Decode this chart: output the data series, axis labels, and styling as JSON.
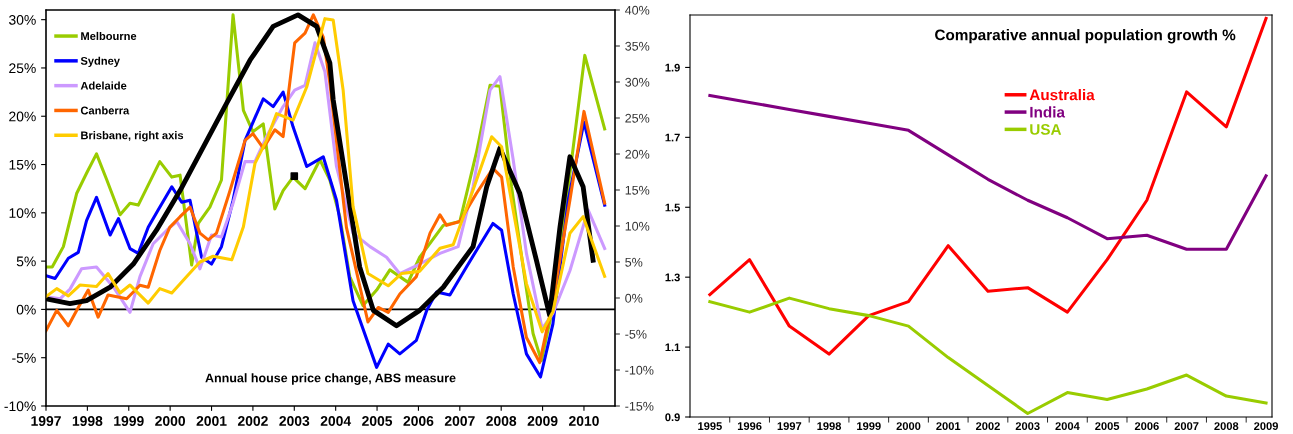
{
  "chart_data": [
    {
      "type": "line",
      "xlim": [
        1997,
        2010.75
      ],
      "xticks": [
        1997,
        1998,
        1999,
        2000,
        2001,
        2002,
        2003,
        2004,
        2005,
        2006,
        2007,
        2008,
        2009,
        2010
      ],
      "ylim": [
        -10,
        31
      ],
      "yticks": [
        {
          "value": -10,
          "label": "-10%"
        },
        {
          "value": -5,
          "label": "-5%"
        },
        {
          "value": 0,
          "label": "0%"
        },
        {
          "value": 5,
          "label": "5%"
        },
        {
          "value": 10,
          "label": "10%"
        },
        {
          "value": 15,
          "label": "15%"
        },
        {
          "value": 20,
          "label": "20%"
        },
        {
          "value": 25,
          "label": "25%"
        },
        {
          "value": 30,
          "label": "30%"
        }
      ],
      "y2lim": [
        -15,
        40
      ],
      "y2ticks": [
        {
          "value": -15,
          "label": "-15%"
        },
        {
          "value": -10,
          "label": "-10%"
        },
        {
          "value": -5,
          "label": "-5%"
        },
        {
          "value": 0,
          "label": "0%"
        },
        {
          "value": 5,
          "label": "5%"
        },
        {
          "value": 10,
          "label": "10%"
        },
        {
          "value": 15,
          "label": "15%"
        },
        {
          "value": 20,
          "label": "20%"
        },
        {
          "value": 25,
          "label": "25%"
        },
        {
          "value": 30,
          "label": "30%"
        },
        {
          "value": 35,
          "label": "35%"
        },
        {
          "value": 40,
          "label": "40%"
        }
      ],
      "grid": false,
      "legend": "top left",
      "marker": "none",
      "line_style": "solid",
      "ref_lines": [
        {
          "axis": "y",
          "value": 0,
          "color": "#000000"
        }
      ],
      "annotations": [
        "Annual house price change, ABS measure"
      ],
      "series": [
        {
          "name": "Melbourne",
          "color": "#99cc00",
          "x": [
            1997.0,
            1997.15,
            1997.42,
            1997.74,
            1997.98,
            1998.22,
            1998.47,
            1998.79,
            1999.03,
            1999.23,
            1999.75,
            2000.04,
            2000.24,
            2000.52,
            2000.68,
            2000.96,
            2001.24,
            2001.52,
            2001.77,
            2002.0,
            2002.25,
            2002.53,
            2002.73,
            2002.97,
            2003.26,
            2003.62,
            2003.86,
            2004.1,
            2004.34,
            2004.66,
            2004.99,
            2005.31,
            2005.75,
            2006.03,
            2006.6,
            2007.0,
            2007.4,
            2007.73,
            2007.97,
            2008.25,
            2008.53,
            2008.77,
            2008.97,
            2009.25,
            2009.58,
            2010.02,
            2010.5
          ],
          "values": [
            4.4,
            4.4,
            6.5,
            12.0,
            14.1,
            16.1,
            13.4,
            9.8,
            11.0,
            10.8,
            15.3,
            13.7,
            13.9,
            4.6,
            8.9,
            10.6,
            13.4,
            30.5,
            20.6,
            18.4,
            19.2,
            10.4,
            12.3,
            13.7,
            12.5,
            15.5,
            13.4,
            9.6,
            3.4,
            0.4,
            2.0,
            4.1,
            2.8,
            5.4,
            8.7,
            9.1,
            16.2,
            23.2,
            23.1,
            12.7,
            4.4,
            -2.5,
            -5.3,
            0.2,
            11.3,
            26.3,
            18.7
          ]
        },
        {
          "name": "Sydney",
          "color": "#0000ff",
          "x": [
            1997.0,
            1997.22,
            1997.54,
            1997.78,
            1997.98,
            1998.22,
            1998.55,
            1998.75,
            1999.03,
            1999.23,
            1999.47,
            1999.71,
            2000.04,
            2000.28,
            2000.48,
            2000.76,
            2001.0,
            2001.24,
            2001.52,
            2001.81,
            2002.25,
            2002.49,
            2002.73,
            2002.97,
            2003.3,
            2003.7,
            2004.02,
            2004.42,
            2004.99,
            2005.27,
            2005.55,
            2005.95,
            2006.2,
            2006.44,
            2006.76,
            2007.16,
            2007.8,
            2008.01,
            2008.29,
            2008.61,
            2008.95,
            2009.25,
            2009.62,
            2010.0,
            2010.5
          ],
          "values": [
            3.5,
            3.2,
            5.3,
            5.9,
            9.2,
            11.6,
            7.7,
            9.4,
            6.3,
            5.8,
            8.5,
            10.3,
            12.7,
            11.1,
            11.3,
            5.4,
            4.7,
            6.5,
            11.3,
            17.5,
            21.8,
            21.0,
            22.5,
            18.9,
            14.8,
            15.8,
            11.3,
            0.9,
            -6.0,
            -3.6,
            -4.6,
            -3.2,
            -0.1,
            1.8,
            1.5,
            4.4,
            8.9,
            8.2,
            1.6,
            -4.6,
            -7.0,
            -1.5,
            11.3,
            19.4,
            10.8
          ]
        },
        {
          "name": "Adelaide",
          "color": "#cc99ff",
          "x": [
            1997.0,
            1997.34,
            1997.58,
            1997.86,
            1998.22,
            1998.63,
            1999.03,
            1999.27,
            1999.59,
            1999.92,
            2000.16,
            2000.48,
            2000.72,
            2001.0,
            2001.24,
            2001.52,
            2001.81,
            2002.05,
            2002.33,
            2002.73,
            2003.01,
            2003.26,
            2003.5,
            2003.74,
            2004.02,
            2004.42,
            2004.83,
            2005.23,
            2005.55,
            2006.03,
            2006.52,
            2006.96,
            2007.32,
            2007.73,
            2007.97,
            2008.29,
            2008.61,
            2008.99,
            2009.25,
            2009.66,
            2010.1,
            2010.5
          ],
          "values": [
            1.3,
            1.1,
            2.1,
            4.2,
            4.4,
            2.3,
            -0.3,
            3.4,
            6.8,
            8.2,
            9.1,
            6.8,
            4.2,
            7.7,
            7.5,
            11.0,
            15.3,
            15.3,
            17.9,
            21.0,
            22.7,
            23.2,
            27.6,
            24.6,
            14.8,
            7.9,
            6.5,
            5.4,
            3.7,
            4.7,
            5.8,
            6.5,
            12.7,
            22.7,
            24.1,
            15.5,
            5.8,
            -2.0,
            -0.4,
            4.0,
            10.3,
            6.3
          ]
        },
        {
          "name": "Canberra",
          "color": "#ff6600",
          "x": [
            1997.0,
            1997.26,
            1997.54,
            1997.78,
            1998.02,
            1998.26,
            1998.5,
            1998.95,
            1999.27,
            1999.47,
            1999.75,
            1999.99,
            2000.24,
            2000.48,
            2000.72,
            2000.92,
            2001.12,
            2001.44,
            2001.81,
            2002.0,
            2002.25,
            2002.53,
            2002.73,
            2003.01,
            2003.26,
            2003.46,
            2003.7,
            2003.86,
            2004.26,
            2004.78,
            2005.03,
            2005.27,
            2005.55,
            2005.95,
            2006.28,
            2006.52,
            2006.68,
            2007.0,
            2007.4,
            2007.8,
            2008.01,
            2008.29,
            2008.61,
            2008.93,
            2009.25,
            2009.66,
            2010.0,
            2010.5
          ],
          "values": [
            -2.2,
            -0.1,
            -1.7,
            0.2,
            2.0,
            -0.8,
            1.5,
            1.1,
            2.5,
            2.3,
            6.1,
            8.5,
            9.6,
            10.6,
            7.9,
            7.2,
            7.9,
            12.2,
            17.5,
            18.2,
            16.7,
            18.6,
            17.9,
            27.6,
            28.6,
            30.5,
            28.2,
            23.4,
            8.5,
            -1.3,
            0.2,
            -0.3,
            1.6,
            3.4,
            7.9,
            9.8,
            8.7,
            9.1,
            12.0,
            14.6,
            13.7,
            4.4,
            -2.9,
            -5.5,
            0.9,
            11.3,
            20.5,
            11.0
          ]
        },
        {
          "name": "Brisbane, right axis",
          "color": "#ffcc00",
          "axis": "y2",
          "x": [
            1997.0,
            1997.26,
            1997.54,
            1997.82,
            1998.22,
            1998.5,
            1998.79,
            1999.03,
            1999.47,
            1999.75,
            2000.04,
            2000.4,
            2000.72,
            2001.04,
            2001.49,
            2001.77,
            2002.05,
            2002.33,
            2002.57,
            2002.97,
            2003.3,
            2003.74,
            2003.94,
            2004.18,
            2004.42,
            2004.78,
            2005.27,
            2005.59,
            2006.03,
            2006.52,
            2006.84,
            2007.32,
            2007.77,
            2008.01,
            2008.29,
            2008.61,
            2008.99,
            2009.25,
            2009.66,
            2009.98,
            2010.5
          ],
          "values": [
            0.2,
            1.3,
            0.3,
            1.8,
            1.6,
            3.4,
            0.7,
            1.8,
            -0.7,
            1.3,
            0.7,
            3.0,
            5.0,
            5.8,
            5.3,
            9.9,
            18.7,
            21.9,
            25.6,
            24.7,
            29.3,
            38.8,
            38.6,
            28.9,
            12.7,
            3.4,
            1.7,
            3.4,
            3.7,
            6.9,
            7.4,
            15.0,
            22.4,
            21.0,
            12.2,
            2.0,
            -4.7,
            -1.9,
            9.0,
            11.3,
            3.0
          ]
        },
        {
          "color": "#000000",
          "x": [
            1997.0,
            1997.58,
            1997.98,
            1998.55,
            1999.11,
            1999.67,
            2000.24,
            2000.8,
            2001.36,
            2001.93,
            2002.49,
            2003.09,
            2003.54,
            2003.86,
            2003.94,
            2004.26,
            2004.58,
            2004.91,
            2005.47,
            2006.03,
            2006.6,
            2007.32,
            2007.65,
            2007.97,
            2008.45,
            2008.85,
            2009.17,
            2009.42,
            2009.66,
            2009.98,
            2010.22
          ],
          "values": [
            1.1,
            0.6,
            0.9,
            2.3,
            4.7,
            8.2,
            12.3,
            16.8,
            21.3,
            25.8,
            29.3,
            30.5,
            29.3,
            25.5,
            21.7,
            13.0,
            4.4,
            -0.1,
            -1.7,
            -0.1,
            2.3,
            6.5,
            12.7,
            16.7,
            12.0,
            5.1,
            -0.6,
            8.5,
            15.8,
            12.7,
            5.1
          ]
        },
        {
          "type": "scatter",
          "marker": "square",
          "color": "#000000",
          "x": [
            2003
          ],
          "values": [
            13.8
          ]
        }
      ]
    },
    {
      "type": "line",
      "title": "Comparative annual population growth %",
      "categories": [
        "1995",
        "1996",
        "1997",
        "1998",
        "1999",
        "2000",
        "2001",
        "2002",
        "2003",
        "2004",
        "2005",
        "2006",
        "2007",
        "2008",
        "2009"
      ],
      "ylim": [
        0.9,
        2.05
      ],
      "yticks": [
        0.9,
        1.1,
        1.3,
        1.5,
        1.7,
        1.9
      ],
      "grid": false,
      "legend": "top",
      "marker": "none",
      "line_style": "solid",
      "series": [
        {
          "name": "Australia",
          "color": "#ff0000",
          "values": [
            1.25,
            1.35,
            1.16,
            1.08,
            1.19,
            1.23,
            1.39,
            1.26,
            1.27,
            1.2,
            1.35,
            1.52,
            1.83,
            1.73,
            2.04
          ]
        },
        {
          "name": "India",
          "color": "#800080",
          "values": [
            1.82,
            1.8,
            1.78,
            1.76,
            1.74,
            1.72,
            1.65,
            1.58,
            1.52,
            1.47,
            1.41,
            1.42,
            1.38,
            1.38,
            1.59
          ]
        },
        {
          "name": "USA",
          "color": "#99cc00",
          "values": [
            1.23,
            1.2,
            1.24,
            1.21,
            1.19,
            1.16,
            1.07,
            0.99,
            0.91,
            0.97,
            0.95,
            0.98,
            1.02,
            0.96,
            0.94
          ]
        }
      ]
    }
  ]
}
